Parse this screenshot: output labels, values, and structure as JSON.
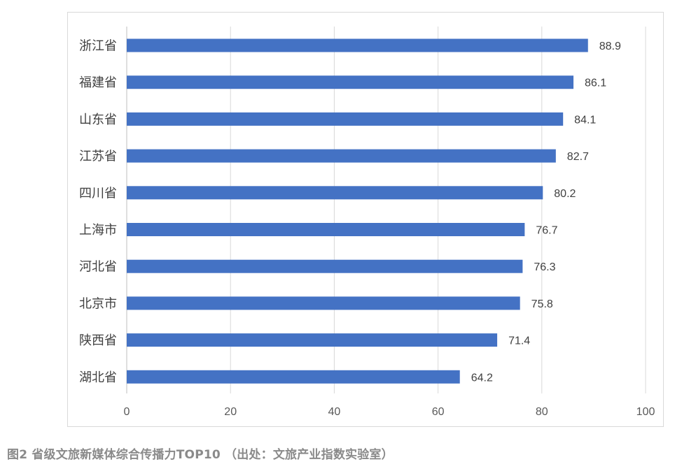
{
  "chart_data": {
    "type": "bar",
    "orientation": "horizontal",
    "categories": [
      "浙江省",
      "福建省",
      "山东省",
      "江苏省",
      "四川省",
      "上海市",
      "河北省",
      "北京市",
      "陕西省",
      "湖北省"
    ],
    "values": [
      88.9,
      86.1,
      84.1,
      82.7,
      80.2,
      76.7,
      76.3,
      75.8,
      71.4,
      64.2
    ],
    "value_labels": [
      "88.9",
      "86.1",
      "84.1",
      "82.7",
      "80.2",
      "76.7",
      "76.3",
      "75.8",
      "71.4",
      "64.2"
    ],
    "xlim": [
      0,
      100
    ],
    "x_ticks": [
      0,
      20,
      40,
      60,
      80,
      100
    ],
    "x_tick_labels": [
      "0",
      "20",
      "40",
      "60",
      "80",
      "100"
    ],
    "grid": "vertical",
    "legend": "none",
    "bar_color": "#4472C4",
    "title": "",
    "xlabel": "",
    "ylabel": ""
  },
  "caption": "图2 省级文旅新媒体综合传播力TOP10 （出处：文旅产业指数实验室）"
}
